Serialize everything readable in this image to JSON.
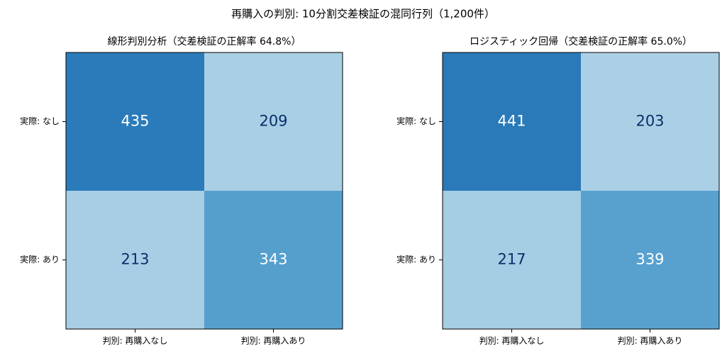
{
  "title": "再購入の判別: 10分割交差検証の混同行列（1,200件）",
  "chart_data": [
    {
      "type": "heatmap",
      "title": "線形判別分析（交差検証の正解率 64.8%）",
      "x_categories": [
        "判別: 再購入なし",
        "判別: 再購入あり"
      ],
      "y_categories": [
        "実際: なし",
        "実際: あり"
      ],
      "values": [
        [
          435,
          209
        ],
        [
          213,
          343
        ]
      ],
      "colors": [
        [
          "#2b7bba",
          "#a9cfe5"
        ],
        [
          "#a7cee4",
          "#559fcd"
        ]
      ],
      "text_colors": [
        [
          "#ffffff",
          "#08306b"
        ],
        [
          "#08306b",
          "#ffffff"
        ]
      ]
    },
    {
      "type": "heatmap",
      "title": "ロジスティック回帰（交差検証の正解率 65.0%）",
      "x_categories": [
        "判別: 再購入なし",
        "判別: 再購入あり"
      ],
      "y_categories": [
        "実際: なし",
        "実際: あり"
      ],
      "values": [
        [
          441,
          203
        ],
        [
          217,
          339
        ]
      ],
      "colors": [
        [
          "#2a7ab9",
          "#abd0e6"
        ],
        [
          "#a5cde3",
          "#58a1cf"
        ]
      ],
      "text_colors": [
        [
          "#ffffff",
          "#08306b"
        ],
        [
          "#08306b",
          "#ffffff"
        ]
      ]
    }
  ]
}
